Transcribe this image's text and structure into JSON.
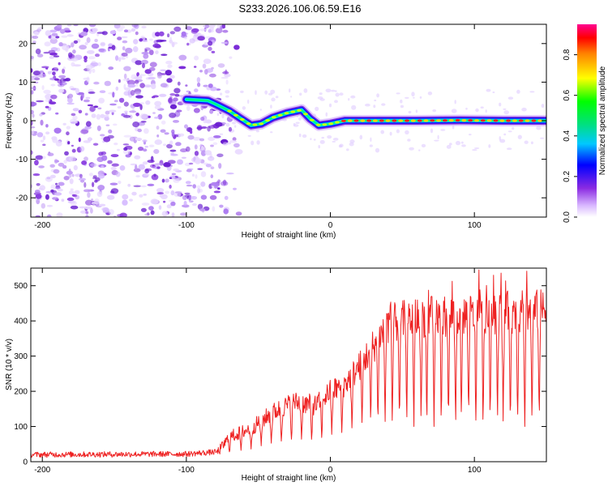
{
  "title": "S233.2026.106.06.59.E16",
  "colors": {
    "spectrogram_min": "#ffffff",
    "spectrogram_max": "#ff0090",
    "snr_line": "#ee2222",
    "axis": "#000000"
  },
  "chart_data": [
    {
      "type": "heatmap",
      "name": "spectrogram",
      "xlabel": "Height of straight line (km)",
      "ylabel": "Frequency (Hz)",
      "xlim": [
        -208,
        150
      ],
      "ylim": [
        -25,
        25
      ],
      "xticks": [
        -200,
        -100,
        0,
        100
      ],
      "yticks": [
        20,
        10,
        0,
        -10,
        -20
      ],
      "xtick_labels": [
        "-200",
        "-100",
        "0",
        "100"
      ],
      "ytick_labels": [
        "20",
        "10",
        "0",
        "-10",
        "-20"
      ],
      "noise_region_x": [
        -208,
        -78
      ],
      "ridge": [
        {
          "x": -100,
          "f": 5.5
        },
        {
          "x": -85,
          "f": 5.2
        },
        {
          "x": -78,
          "f": 4.0
        },
        {
          "x": -70,
          "f": 2.5
        },
        {
          "x": -62,
          "f": 0.5
        },
        {
          "x": -55,
          "f": -1.2
        },
        {
          "x": -48,
          "f": -0.8
        },
        {
          "x": -40,
          "f": 0.8
        },
        {
          "x": -30,
          "f": 2.0
        },
        {
          "x": -20,
          "f": 2.8
        },
        {
          "x": -14,
          "f": 0.5
        },
        {
          "x": -8,
          "f": -1.2
        },
        {
          "x": 0,
          "f": -0.8
        },
        {
          "x": 10,
          "f": 0.0
        },
        {
          "x": 30,
          "f": 0.0
        },
        {
          "x": 60,
          "f": 0.0
        },
        {
          "x": 90,
          "f": 0.1
        },
        {
          "x": 120,
          "f": 0.0
        },
        {
          "x": 150,
          "f": 0.0
        }
      ],
      "colorbar": {
        "label": "Normalized spectral amplitude",
        "range": [
          0,
          0.95
        ],
        "ticks": [
          0.0,
          0.2,
          0.4,
          0.6,
          0.8
        ],
        "tick_labels": [
          "0.0",
          "0.2",
          "0.4",
          "0.6",
          "0.8"
        ]
      }
    },
    {
      "type": "line",
      "name": "snr",
      "xlabel": "Height of straight line (km)",
      "ylabel": "SNR (10 * v/v)",
      "xlim": [
        -208,
        150
      ],
      "ylim": [
        0,
        550
      ],
      "xticks": [
        -200,
        -100,
        0,
        100
      ],
      "yticks": [
        0,
        100,
        200,
        300,
        400,
        500
      ],
      "xtick_labels": [
        "-200",
        "-100",
        "0",
        "100"
      ],
      "ytick_labels": [
        "0",
        "100",
        "200",
        "300",
        "400",
        "500"
      ],
      "trend": [
        {
          "x": -208,
          "snr": 20
        },
        {
          "x": -100,
          "snr": 22
        },
        {
          "x": -78,
          "snr": 28
        },
        {
          "x": -70,
          "snr": 70
        },
        {
          "x": -55,
          "snr": 95
        },
        {
          "x": -40,
          "snr": 140
        },
        {
          "x": -25,
          "snr": 170
        },
        {
          "x": -10,
          "snr": 160
        },
        {
          "x": 0,
          "snr": 200
        },
        {
          "x": 10,
          "snr": 220
        },
        {
          "x": 20,
          "snr": 270
        },
        {
          "x": 30,
          "snr": 330
        },
        {
          "x": 40,
          "snr": 390
        },
        {
          "x": 60,
          "snr": 410
        },
        {
          "x": 100,
          "snr": 420
        },
        {
          "x": 150,
          "snr": 430
        }
      ],
      "dips": [
        -70,
        -62,
        -55,
        -48,
        -41,
        -34,
        -27,
        -20,
        -13,
        -6,
        1,
        8,
        15,
        22,
        28,
        33,
        38,
        43,
        48,
        53,
        58,
        63,
        67,
        72,
        77,
        82,
        87,
        91,
        96,
        101,
        106,
        111,
        116,
        120,
        125,
        130,
        135,
        140,
        145
      ],
      "dip_floor": 100,
      "max_peak": {
        "x": 103,
        "snr": 545
      }
    }
  ]
}
